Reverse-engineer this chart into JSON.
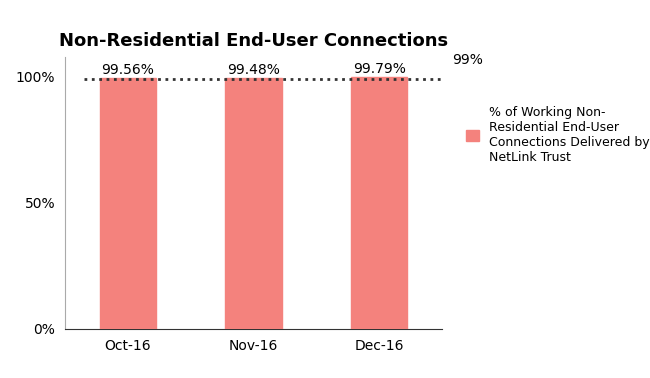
{
  "title": "Non-Residential End-User Connections",
  "categories": [
    "Oct-16",
    "Nov-16",
    "Dec-16"
  ],
  "values": [
    99.56,
    99.48,
    99.79
  ],
  "bar_color": "#F4827D",
  "bar_edge_color": "#F4827D",
  "bar_labels": [
    "99.56%",
    "99.48%",
    "99.79%"
  ],
  "yticks": [
    0,
    50,
    100
  ],
  "ytick_labels": [
    "0%",
    "50%",
    "100%"
  ],
  "ylim": [
    0,
    108
  ],
  "target_line_y": 99,
  "target_line_label": "99%",
  "target_line_color": "#333333",
  "legend_label": "% of Working Non-\nResidential End-User\nConnections Delivered by\nNetLink Trust",
  "legend_color": "#F4827D",
  "title_fontsize": 13,
  "axis_fontsize": 10,
  "label_fontsize": 10,
  "background_color": "#ffffff"
}
